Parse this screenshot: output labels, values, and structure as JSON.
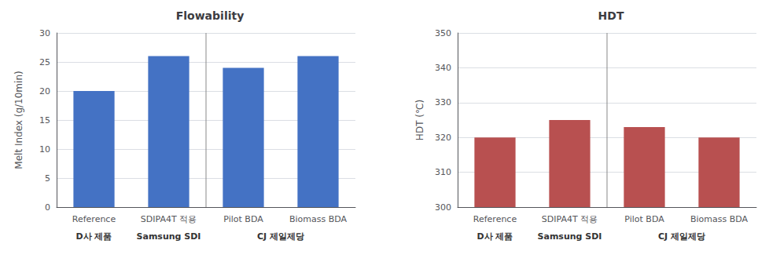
{
  "chart_data": [
    {
      "type": "bar",
      "title": "Flowability",
      "ylabel": "Melt Index (g/10min)",
      "categories": [
        "Reference",
        "SDIPA4T 적용",
        "Pilot BDA",
        "Biomass BDA"
      ],
      "values": [
        20,
        26,
        24,
        26
      ],
      "color": "#4472C4",
      "ylim": [
        0,
        30
      ],
      "yticks": [
        0,
        5,
        10,
        15,
        20,
        25,
        30
      ],
      "grid": true,
      "groups": [
        {
          "name": "D사 제품",
          "categories": [
            "Reference"
          ]
        },
        {
          "name": "Samsung SDI",
          "categories": [
            "SDIPA4T 적용"
          ]
        },
        {
          "name": "CJ 제일제당",
          "categories": [
            "Pilot BDA",
            "Biomass BDA"
          ]
        }
      ]
    },
    {
      "type": "bar",
      "title": "HDT",
      "ylabel": "HDT (℃)",
      "categories": [
        "Reference",
        "SDIPA4T 적용",
        "Pilot BDA",
        "Biomass BDA"
      ],
      "values": [
        320,
        325,
        323,
        320
      ],
      "color": "#B85050",
      "ylim": [
        300,
        350
      ],
      "yticks": [
        300,
        310,
        320,
        330,
        340,
        350
      ],
      "grid": true,
      "groups": [
        {
          "name": "D사 제품",
          "categories": [
            "Reference"
          ]
        },
        {
          "name": "Samsung SDI",
          "categories": [
            "SDIPA4T 적용"
          ]
        },
        {
          "name": "CJ 제일제당",
          "categories": [
            "Pilot BDA",
            "Biomass BDA"
          ]
        }
      ]
    }
  ]
}
